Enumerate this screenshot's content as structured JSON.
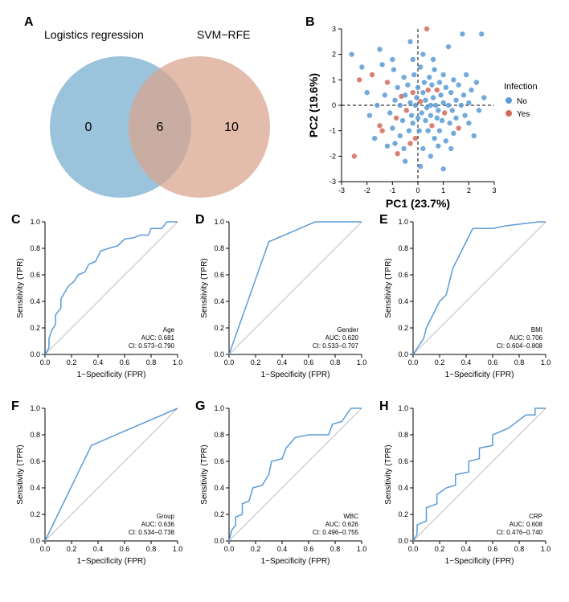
{
  "colors": {
    "line": "#5b9bd5",
    "diag": "#bfbfbf",
    "venn_left": "#8ab8d6",
    "venn_right": "#d9a58f",
    "venn_overlap": "#8f7f7a",
    "scatter_no": "#5b9bd5",
    "scatter_yes": "#d46a5b",
    "axis": "#000000",
    "bg": "#ffffff"
  },
  "panelA": {
    "label": "A",
    "left_title": "Logistics regression",
    "right_title": "SVM−RFE",
    "left_count": "0",
    "overlap_count": "6",
    "right_count": "10"
  },
  "panelB": {
    "label": "B",
    "xlabel": "PC1 (23.7%)",
    "ylabel": "PC2 (19.6%)",
    "xlim": [
      -3,
      3
    ],
    "ylim": [
      -3,
      3
    ],
    "ticks": [
      -3,
      -2,
      -1,
      0,
      1,
      2,
      3
    ],
    "legend_title": "Infection",
    "legend_items": [
      {
        "label": "No",
        "color": "#5b9bd5"
      },
      {
        "label": "Yes",
        "color": "#d46a5b"
      }
    ],
    "points": [
      {
        "x": -2.6,
        "y": 2.0,
        "c": "no"
      },
      {
        "x": -2.2,
        "y": 1.5,
        "c": "no"
      },
      {
        "x": -2.5,
        "y": -2.0,
        "c": "yes"
      },
      {
        "x": -2.3,
        "y": 1.0,
        "c": "yes"
      },
      {
        "x": -2.0,
        "y": 0.5,
        "c": "no"
      },
      {
        "x": -1.9,
        "y": -0.4,
        "c": "no"
      },
      {
        "x": -1.8,
        "y": 1.2,
        "c": "yes"
      },
      {
        "x": -1.7,
        "y": -1.3,
        "c": "no"
      },
      {
        "x": -1.6,
        "y": 0.0,
        "c": "no"
      },
      {
        "x": -1.5,
        "y": -0.8,
        "c": "yes"
      },
      {
        "x": -1.5,
        "y": 2.2,
        "c": "no"
      },
      {
        "x": -1.3,
        "y": 0.4,
        "c": "no"
      },
      {
        "x": -1.2,
        "y": -1.6,
        "c": "no"
      },
      {
        "x": -1.2,
        "y": 0.9,
        "c": "yes"
      },
      {
        "x": -1.1,
        "y": -0.3,
        "c": "no"
      },
      {
        "x": -1.0,
        "y": -0.9,
        "c": "no"
      },
      {
        "x": -0.95,
        "y": 1.4,
        "c": "no"
      },
      {
        "x": -0.9,
        "y": 0.2,
        "c": "no"
      },
      {
        "x": -0.85,
        "y": -0.5,
        "c": "yes"
      },
      {
        "x": -0.8,
        "y": 0.7,
        "c": "no"
      },
      {
        "x": -0.7,
        "y": -1.2,
        "c": "no"
      },
      {
        "x": -0.7,
        "y": 0.0,
        "c": "no"
      },
      {
        "x": -0.65,
        "y": 0.35,
        "c": "yes"
      },
      {
        "x": -0.6,
        "y": -0.6,
        "c": "no"
      },
      {
        "x": -0.55,
        "y": 1.1,
        "c": "no"
      },
      {
        "x": -0.55,
        "y": -1.7,
        "c": "no"
      },
      {
        "x": -0.5,
        "y": 0.4,
        "c": "no"
      },
      {
        "x": -0.45,
        "y": -0.2,
        "c": "yes"
      },
      {
        "x": -0.4,
        "y": 0.8,
        "c": "no"
      },
      {
        "x": -0.35,
        "y": -1.0,
        "c": "no"
      },
      {
        "x": -0.3,
        "y": 0.1,
        "c": "no"
      },
      {
        "x": -0.3,
        "y": 2.5,
        "c": "no"
      },
      {
        "x": -0.25,
        "y": -0.4,
        "c": "no"
      },
      {
        "x": -0.2,
        "y": 0.5,
        "c": "yes"
      },
      {
        "x": -0.2,
        "y": -0.7,
        "c": "no"
      },
      {
        "x": -0.15,
        "y": 1.2,
        "c": "no"
      },
      {
        "x": -0.1,
        "y": 0.0,
        "c": "no"
      },
      {
        "x": -0.1,
        "y": -1.3,
        "c": "yes"
      },
      {
        "x": -0.05,
        "y": 0.3,
        "c": "no"
      },
      {
        "x": 0.0,
        "y": -0.5,
        "c": "no"
      },
      {
        "x": 0.0,
        "y": 0.7,
        "c": "no"
      },
      {
        "x": 0.05,
        "y": -1.0,
        "c": "no"
      },
      {
        "x": 0.1,
        "y": 0.15,
        "c": "yes"
      },
      {
        "x": 0.1,
        "y": 1.5,
        "c": "no"
      },
      {
        "x": 0.15,
        "y": -0.3,
        "c": "no"
      },
      {
        "x": 0.2,
        "y": 0.5,
        "c": "no"
      },
      {
        "x": 0.2,
        "y": -1.7,
        "c": "no"
      },
      {
        "x": 0.25,
        "y": 0.9,
        "c": "no"
      },
      {
        "x": 0.3,
        "y": -0.6,
        "c": "no"
      },
      {
        "x": 0.3,
        "y": 0.2,
        "c": "no"
      },
      {
        "x": 0.35,
        "y": 3.0,
        "c": "yes"
      },
      {
        "x": 0.35,
        "y": -0.1,
        "c": "no"
      },
      {
        "x": 0.4,
        "y": 0.6,
        "c": "yes"
      },
      {
        "x": 0.4,
        "y": -1.0,
        "c": "no"
      },
      {
        "x": 0.45,
        "y": 1.1,
        "c": "no"
      },
      {
        "x": 0.5,
        "y": -0.4,
        "c": "no"
      },
      {
        "x": 0.5,
        "y": 0.0,
        "c": "no"
      },
      {
        "x": 0.55,
        "y": 0.8,
        "c": "no"
      },
      {
        "x": 0.55,
        "y": -0.8,
        "c": "yes"
      },
      {
        "x": 0.6,
        "y": 0.3,
        "c": "no"
      },
      {
        "x": 0.65,
        "y": -1.3,
        "c": "no"
      },
      {
        "x": 0.65,
        "y": 1.4,
        "c": "no"
      },
      {
        "x": 0.7,
        "y": 0.0,
        "c": "no"
      },
      {
        "x": 0.75,
        "y": -0.5,
        "c": "no"
      },
      {
        "x": 0.75,
        "y": 0.6,
        "c": "yes"
      },
      {
        "x": 0.8,
        "y": -0.2,
        "c": "no"
      },
      {
        "x": 0.85,
        "y": 0.9,
        "c": "no"
      },
      {
        "x": 0.85,
        "y": -1.0,
        "c": "no"
      },
      {
        "x": 0.9,
        "y": 0.4,
        "c": "no"
      },
      {
        "x": 0.95,
        "y": -0.6,
        "c": "no"
      },
      {
        "x": 1.0,
        "y": 0.1,
        "c": "no"
      },
      {
        "x": 1.0,
        "y": 1.2,
        "c": "no"
      },
      {
        "x": 1.05,
        "y": -0.3,
        "c": "yes"
      },
      {
        "x": 1.1,
        "y": 0.7,
        "c": "no"
      },
      {
        "x": 1.1,
        "y": -1.4,
        "c": "no"
      },
      {
        "x": 1.2,
        "y": 0.0,
        "c": "no"
      },
      {
        "x": 1.2,
        "y": 2.3,
        "c": "no"
      },
      {
        "x": 1.25,
        "y": -0.7,
        "c": "no"
      },
      {
        "x": 1.3,
        "y": 0.5,
        "c": "no"
      },
      {
        "x": 1.35,
        "y": -0.2,
        "c": "no"
      },
      {
        "x": 1.4,
        "y": 1.0,
        "c": "no"
      },
      {
        "x": 1.4,
        "y": -1.1,
        "c": "no"
      },
      {
        "x": 1.5,
        "y": 0.2,
        "c": "no"
      },
      {
        "x": 1.5,
        "y": -0.5,
        "c": "no"
      },
      {
        "x": 1.6,
        "y": 0.8,
        "c": "no"
      },
      {
        "x": 1.6,
        "y": -0.9,
        "c": "yes"
      },
      {
        "x": 1.7,
        "y": 0.0,
        "c": "no"
      },
      {
        "x": 1.75,
        "y": 2.8,
        "c": "no"
      },
      {
        "x": 1.8,
        "y": 0.4,
        "c": "no"
      },
      {
        "x": 1.85,
        "y": -0.4,
        "c": "no"
      },
      {
        "x": 1.9,
        "y": 1.2,
        "c": "no"
      },
      {
        "x": 2.0,
        "y": -0.7,
        "c": "no"
      },
      {
        "x": 2.0,
        "y": 0.1,
        "c": "no"
      },
      {
        "x": 2.1,
        "y": 0.6,
        "c": "no"
      },
      {
        "x": 2.2,
        "y": -1.2,
        "c": "no"
      },
      {
        "x": 2.3,
        "y": 0.9,
        "c": "no"
      },
      {
        "x": 2.4,
        "y": -0.2,
        "c": "no"
      },
      {
        "x": 2.5,
        "y": 2.8,
        "c": "no"
      },
      {
        "x": 2.6,
        "y": 0.3,
        "c": "no"
      },
      {
        "x": 0.1,
        "y": -2.4,
        "c": "no"
      },
      {
        "x": 1.0,
        "y": -2.5,
        "c": "no"
      },
      {
        "x": -0.5,
        "y": -2.2,
        "c": "no"
      },
      {
        "x": -0.8,
        "y": -1.9,
        "c": "yes"
      },
      {
        "x": 0.5,
        "y": -2.0,
        "c": "no"
      },
      {
        "x": -1.4,
        "y": -1.0,
        "c": "yes"
      },
      {
        "x": -0.3,
        "y": -1.5,
        "c": "yes"
      },
      {
        "x": 0.8,
        "y": -1.6,
        "c": "no"
      },
      {
        "x": -1.0,
        "y": 1.8,
        "c": "no"
      },
      {
        "x": 0.2,
        "y": 2.0,
        "c": "no"
      },
      {
        "x": -0.9,
        "y": -1.5,
        "c": "no"
      },
      {
        "x": 1.3,
        "y": -1.7,
        "c": "no"
      },
      {
        "x": -1.4,
        "y": 1.6,
        "c": "no"
      },
      {
        "x": 0.6,
        "y": 1.8,
        "c": "no"
      },
      {
        "x": -0.2,
        "y": 1.8,
        "c": "no"
      }
    ]
  },
  "rocCommon": {
    "xlabel": "1−Specificity (FPR)",
    "ylabel": "Sensitivity (TPR)",
    "ticks": [
      0.0,
      0.2,
      0.4,
      0.6,
      0.8,
      1.0
    ]
  },
  "rocPanels": [
    {
      "label": "C",
      "name": "Age",
      "auc": "AUC: 0.681",
      "ci": "CI: 0.573−0.790",
      "points": [
        [
          0,
          0
        ],
        [
          0.03,
          0.05
        ],
        [
          0.03,
          0.12
        ],
        [
          0.05,
          0.18
        ],
        [
          0.08,
          0.23
        ],
        [
          0.08,
          0.3
        ],
        [
          0.12,
          0.35
        ],
        [
          0.12,
          0.42
        ],
        [
          0.15,
          0.47
        ],
        [
          0.18,
          0.52
        ],
        [
          0.22,
          0.55
        ],
        [
          0.25,
          0.6
        ],
        [
          0.3,
          0.62
        ],
        [
          0.33,
          0.68
        ],
        [
          0.38,
          0.7
        ],
        [
          0.42,
          0.78
        ],
        [
          0.48,
          0.8
        ],
        [
          0.55,
          0.82
        ],
        [
          0.6,
          0.87
        ],
        [
          0.67,
          0.88
        ],
        [
          0.72,
          0.9
        ],
        [
          0.78,
          0.9
        ],
        [
          0.8,
          0.95
        ],
        [
          0.88,
          0.95
        ],
        [
          0.92,
          1.0
        ],
        [
          1.0,
          1.0
        ]
      ]
    },
    {
      "label": "D",
      "name": "Gender",
      "auc": "AUC: 0.620",
      "ci": "CI: 0.533−0.707",
      "points": [
        [
          0,
          0
        ],
        [
          0.3,
          0.85
        ],
        [
          0.65,
          1.0
        ],
        [
          1.0,
          1.0
        ]
      ]
    },
    {
      "label": "E",
      "name": "BMI",
      "auc": "AUC: 0.706",
      "ci": "CI: 0.604−0.808",
      "points": [
        [
          0,
          0
        ],
        [
          0.08,
          0.12
        ],
        [
          0.1,
          0.2
        ],
        [
          0.15,
          0.3
        ],
        [
          0.2,
          0.4
        ],
        [
          0.25,
          0.45
        ],
        [
          0.3,
          0.65
        ],
        [
          0.35,
          0.75
        ],
        [
          0.45,
          0.95
        ],
        [
          0.6,
          0.95
        ],
        [
          0.7,
          0.97
        ],
        [
          0.95,
          1.0
        ],
        [
          1.0,
          1.0
        ]
      ]
    },
    {
      "label": "F",
      "name": "Group",
      "auc": "AUC: 0.636",
      "ci": "CI: 0.534−0.738",
      "points": [
        [
          0,
          0
        ],
        [
          0.35,
          0.72
        ],
        [
          1.0,
          1.0
        ]
      ]
    },
    {
      "label": "G",
      "name": "WBC",
      "auc": "AUC: 0.626",
      "ci": "CI: 0.496−0.755",
      "points": [
        [
          0,
          0
        ],
        [
          0.02,
          0.08
        ],
        [
          0.05,
          0.12
        ],
        [
          0.05,
          0.18
        ],
        [
          0.1,
          0.2
        ],
        [
          0.1,
          0.28
        ],
        [
          0.15,
          0.3
        ],
        [
          0.18,
          0.4
        ],
        [
          0.25,
          0.42
        ],
        [
          0.3,
          0.5
        ],
        [
          0.32,
          0.6
        ],
        [
          0.4,
          0.62
        ],
        [
          0.43,
          0.7
        ],
        [
          0.5,
          0.78
        ],
        [
          0.6,
          0.8
        ],
        [
          0.75,
          0.8
        ],
        [
          0.78,
          0.88
        ],
        [
          0.85,
          0.9
        ],
        [
          0.92,
          1.0
        ],
        [
          1.0,
          1.0
        ]
      ]
    },
    {
      "label": "H",
      "name": "CRP",
      "auc": "AUC: 0.608",
      "ci": "CI: 0.476−0.740",
      "points": [
        [
          0,
          0
        ],
        [
          0.03,
          0.05
        ],
        [
          0.03,
          0.12
        ],
        [
          0.1,
          0.15
        ],
        [
          0.1,
          0.25
        ],
        [
          0.18,
          0.28
        ],
        [
          0.18,
          0.35
        ],
        [
          0.25,
          0.4
        ],
        [
          0.32,
          0.42
        ],
        [
          0.32,
          0.5
        ],
        [
          0.42,
          0.52
        ],
        [
          0.42,
          0.6
        ],
        [
          0.5,
          0.62
        ],
        [
          0.5,
          0.7
        ],
        [
          0.6,
          0.72
        ],
        [
          0.6,
          0.8
        ],
        [
          0.72,
          0.85
        ],
        [
          0.85,
          0.95
        ],
        [
          0.92,
          0.95
        ],
        [
          0.92,
          1.0
        ],
        [
          1.0,
          1.0
        ]
      ]
    }
  ]
}
